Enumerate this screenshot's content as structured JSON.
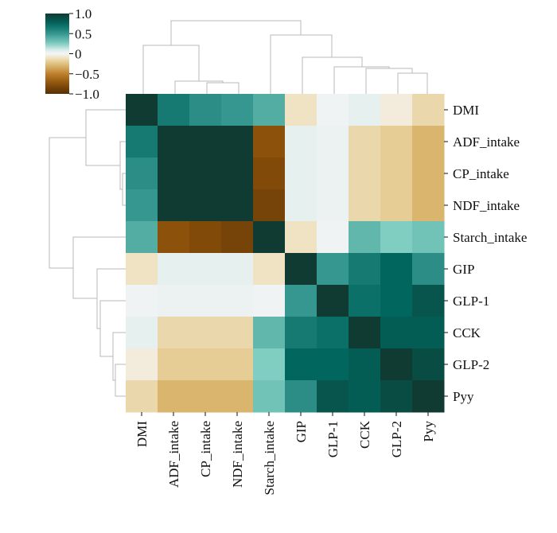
{
  "chart_data": {
    "type": "heatmap",
    "title": "",
    "xlabel": "",
    "ylabel": "",
    "row_labels": [
      "DMI",
      "ADF_intake",
      "CP_intake",
      "NDF_intake",
      "Starch_intake",
      "GIP",
      "GLP-1",
      "CCK",
      "GLP-2",
      "Pyy"
    ],
    "col_labels": [
      "DMI",
      "ADF_intake",
      "CP_intake",
      "NDF_intake",
      "Starch_intake",
      "GIP",
      "GLP-1",
      "CCK",
      "GLP-2",
      "Pyy"
    ],
    "values": [
      [
        1.0,
        0.65,
        0.55,
        0.5,
        0.4,
        -0.1,
        0.02,
        0.05,
        -0.05,
        -0.15
      ],
      [
        0.65,
        1.0,
        1.0,
        1.0,
        -0.75,
        0.05,
        0.03,
        -0.15,
        -0.2,
        -0.3
      ],
      [
        0.55,
        1.0,
        1.0,
        1.0,
        -0.8,
        0.05,
        0.03,
        -0.15,
        -0.2,
        -0.3
      ],
      [
        0.5,
        1.0,
        1.0,
        1.0,
        -0.85,
        0.05,
        0.03,
        -0.15,
        -0.2,
        -0.3
      ],
      [
        0.4,
        -0.75,
        -0.8,
        -0.85,
        1.0,
        -0.1,
        0.02,
        0.35,
        0.25,
        0.3
      ],
      [
        -0.1,
        0.05,
        0.05,
        0.05,
        -0.1,
        1.0,
        0.5,
        0.65,
        0.75,
        0.55
      ],
      [
        0.02,
        0.03,
        0.03,
        0.03,
        0.02,
        0.5,
        1.0,
        0.7,
        0.75,
        0.85
      ],
      [
        0.05,
        -0.15,
        -0.15,
        -0.15,
        0.35,
        0.65,
        0.7,
        1.0,
        0.8,
        0.8
      ],
      [
        -0.05,
        -0.2,
        -0.2,
        -0.2,
        0.25,
        0.75,
        0.75,
        0.8,
        1.0,
        0.9
      ],
      [
        -0.15,
        -0.3,
        -0.3,
        -0.3,
        0.3,
        0.55,
        0.85,
        0.8,
        0.9,
        1.0
      ]
    ],
    "colorbar": {
      "range": [
        -1.0,
        1.0
      ],
      "ticks": [
        1.0,
        0.5,
        0,
        -0.5,
        -1.0
      ],
      "tick_labels": [
        "1.0",
        "0.5",
        "0",
        "−0.5",
        "−1.0"
      ],
      "placement": "top-left"
    },
    "colormap": {
      "name": "BrBG",
      "stops": [
        [
          -1.0,
          "#543005"
        ],
        [
          -0.75,
          "#8c510a"
        ],
        [
          -0.5,
          "#bf812d"
        ],
        [
          -0.25,
          "#dfc27d"
        ],
        [
          -0.1,
          "#f0e3c4"
        ],
        [
          0.0,
          "#f5f5f5"
        ],
        [
          0.1,
          "#d6ece9"
        ],
        [
          0.25,
          "#80cdc1"
        ],
        [
          0.5,
          "#35978f"
        ],
        [
          0.75,
          "#01665e"
        ],
        [
          1.0,
          "#0f3b33"
        ]
      ]
    },
    "dendrogram_color": "#b8b8b8",
    "row_dendrogram": true,
    "col_dendrogram": true,
    "grid": false
  }
}
